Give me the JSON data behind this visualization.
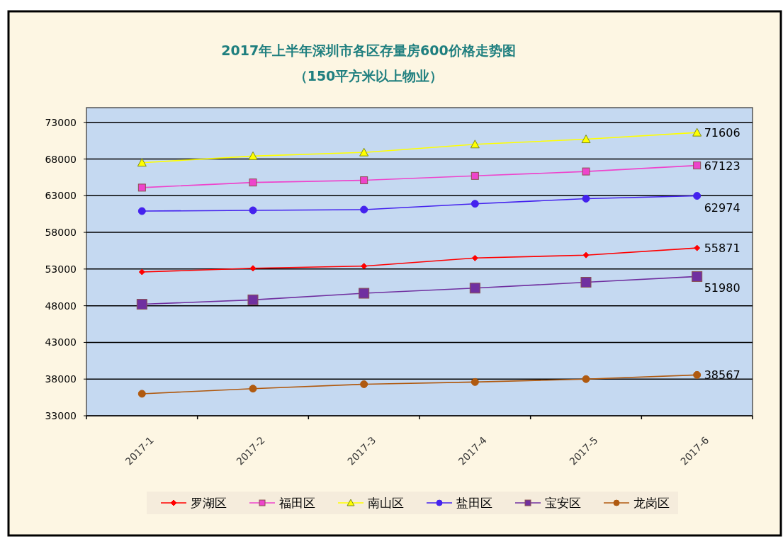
{
  "chart_data": {
    "type": "line",
    "title": "2017年上半年深圳市各区存量房600价格走势图",
    "subtitle": "（150平方米以上物业）",
    "categories": [
      "2017-1",
      "2017-2",
      "2017-3",
      "2017-4",
      "2017-5",
      "2017-6"
    ],
    "series": [
      {
        "name": "罗湖区",
        "color": "#ff0000",
        "marker": "diamond",
        "values": [
          52600,
          53100,
          53400,
          54500,
          54900,
          55871
        ],
        "value_labels": [
          null,
          null,
          null,
          null,
          null,
          "55871"
        ]
      },
      {
        "name": "福田区",
        "color": "#ee44cc",
        "marker": "square",
        "values": [
          64100,
          64800,
          65100,
          65700,
          66300,
          67123
        ],
        "value_labels": [
          null,
          null,
          null,
          null,
          null,
          "67123"
        ]
      },
      {
        "name": "南山区",
        "color": "#ffff00",
        "marker": "triangle",
        "values": [
          67500,
          68400,
          68900,
          70000,
          70700,
          71606
        ],
        "value_labels": [
          null,
          null,
          null,
          null,
          null,
          "71606"
        ]
      },
      {
        "name": "盐田区",
        "color": "#4422ee",
        "marker": "circle",
        "values": [
          60900,
          61000,
          61100,
          61900,
          62600,
          62974
        ],
        "value_labels": [
          null,
          null,
          null,
          null,
          null,
          "62974"
        ]
      },
      {
        "name": "宝安区",
        "color": "#7030a0",
        "marker": "square",
        "values": [
          48200,
          48800,
          49700,
          50400,
          51200,
          51980
        ],
        "value_labels": [
          null,
          null,
          null,
          null,
          null,
          "51980"
        ]
      },
      {
        "name": "龙岗区",
        "color": "#b05a10",
        "marker": "circle",
        "values": [
          36000,
          36700,
          37300,
          37600,
          38000,
          38567
        ],
        "value_labels": [
          null,
          null,
          null,
          null,
          null,
          "38567"
        ]
      }
    ],
    "ylim": [
      33000,
      75000
    ],
    "yticks": [
      33000,
      38000,
      43000,
      48000,
      53000,
      58000,
      63000,
      68000,
      73000
    ],
    "grid": "y",
    "legend": "bottom"
  }
}
